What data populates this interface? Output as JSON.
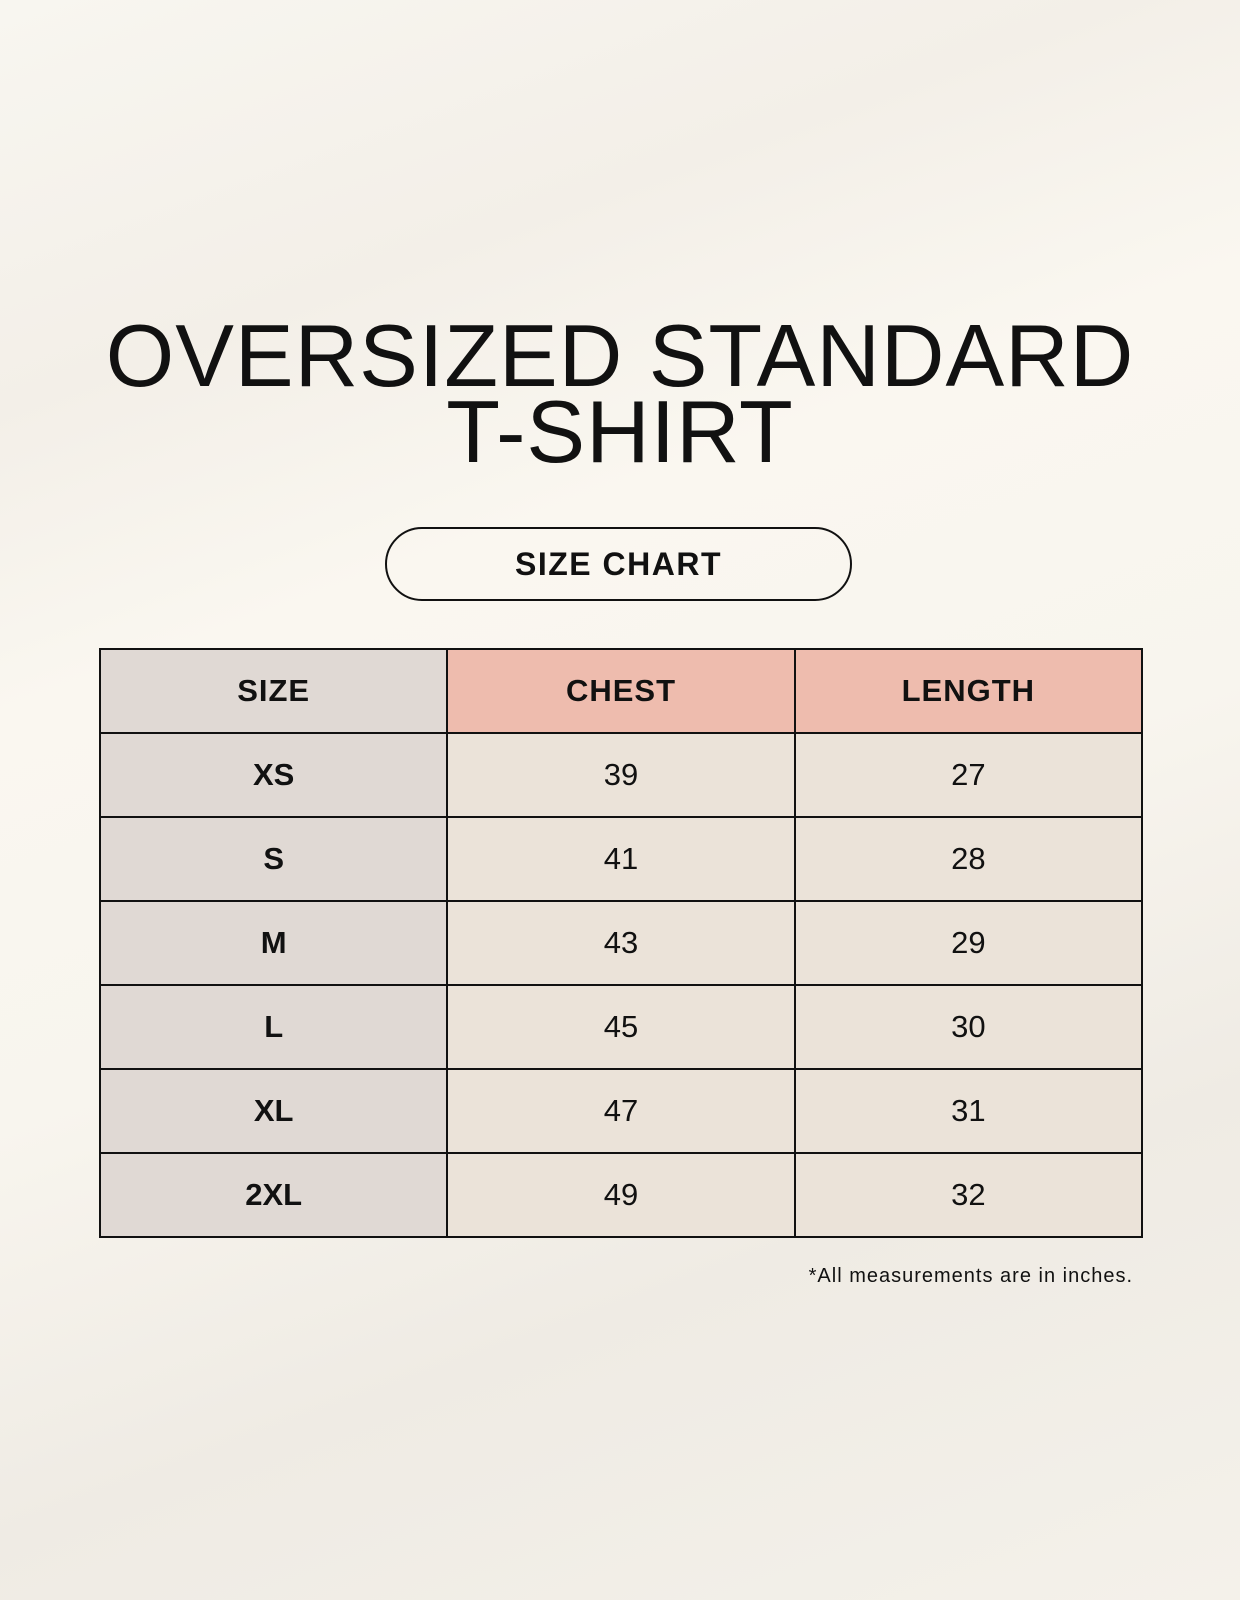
{
  "title": {
    "line1": "OVERSIZED STANDARD",
    "line2": "T-SHIRT"
  },
  "badge": "SIZE CHART",
  "colors": {
    "size_column": "#e0d9d4",
    "header_accent": "#eebcae",
    "body_cells": "#ebe3d9"
  },
  "table": {
    "headers": [
      "SIZE",
      "CHEST",
      "LENGTH"
    ],
    "rows": [
      [
        "XS",
        "39",
        "27"
      ],
      [
        "S",
        "41",
        "28"
      ],
      [
        "M",
        "43",
        "29"
      ],
      [
        "L",
        "45",
        "30"
      ],
      [
        "XL",
        "47",
        "31"
      ],
      [
        "2XL",
        "49",
        "32"
      ]
    ]
  },
  "footnote": "*All measurements are in inches."
}
